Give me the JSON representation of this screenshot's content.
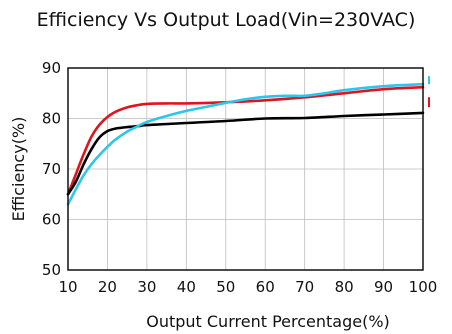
{
  "chart_data": {
    "type": "line",
    "title": "Efficiency Vs Output Load(Vin=230VAC)",
    "xlabel": "Output Current Percentage(%)",
    "ylabel": "Efficiency(%)",
    "xlim": [
      10,
      100
    ],
    "ylim": [
      50,
      90
    ],
    "xticks": [
      10,
      20,
      30,
      40,
      50,
      60,
      70,
      80,
      90,
      100
    ],
    "yticks": [
      50,
      60,
      70,
      80,
      90
    ],
    "grid": true,
    "legend": "none",
    "series": [
      {
        "color": "#e0141e",
        "x": [
          10,
          12,
          14,
          16,
          18,
          20,
          22,
          25,
          28,
          30,
          35,
          40,
          50,
          60,
          70,
          80,
          90,
          100
        ],
        "y": [
          65,
          69,
          73,
          76.5,
          78.8,
          80.3,
          81.3,
          82.2,
          82.7,
          82.9,
          83,
          83,
          83.2,
          83.6,
          84.2,
          85,
          85.8,
          86.2
        ]
      },
      {
        "color": "#000000",
        "x": [
          10,
          12,
          14,
          16,
          18,
          20,
          22,
          25,
          28,
          30,
          40,
          50,
          60,
          70,
          80,
          90,
          100
        ],
        "y": [
          65,
          67.5,
          71,
          74,
          76.3,
          77.5,
          78,
          78.3,
          78.5,
          78.7,
          79.1,
          79.5,
          80,
          80.1,
          80.5,
          80.8,
          81.1
        ]
      },
      {
        "color": "#2ec5ea",
        "x": [
          10,
          12,
          14,
          16,
          18,
          20,
          22,
          25,
          28,
          30,
          35,
          40,
          45,
          50,
          55,
          60,
          65,
          70,
          75,
          80,
          90,
          100
        ],
        "y": [
          63,
          66,
          68.8,
          71,
          72.8,
          74.4,
          75.8,
          77.4,
          78.6,
          79.3,
          80.5,
          81.5,
          82.3,
          83.1,
          83.8,
          84.3,
          84.5,
          84.5,
          85,
          85.6,
          86.4,
          86.8
        ]
      }
    ]
  }
}
